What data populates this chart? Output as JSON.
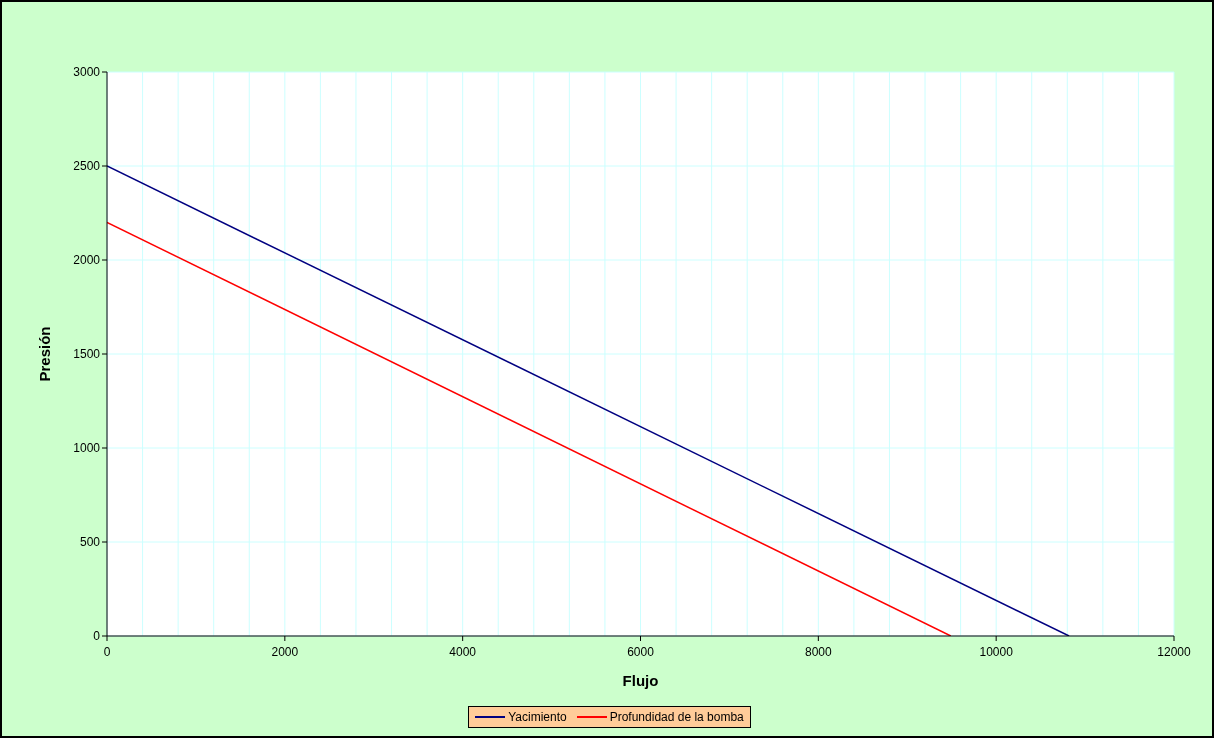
{
  "chart_data": {
    "type": "line",
    "xlabel": "Flujo",
    "ylabel": "Presión",
    "series": [
      {
        "name": "Yacimiento",
        "color": "#000080",
        "x": [
          0,
          10820
        ],
        "values": [
          2500,
          0
        ]
      },
      {
        "name": "Profundidad de la bomba",
        "color": "#ff0000",
        "x": [
          0,
          9490
        ],
        "values": [
          2200,
          0
        ]
      }
    ],
    "xlim": [
      0,
      12000
    ],
    "xticks": [
      0,
      {
        "value": 400,
        "label": null
      },
      {
        "value": 800,
        "label": null
      },
      {
        "value": 1200,
        "label": null
      },
      {
        "value": 1600,
        "label": null
      },
      2000,
      {
        "value": 2400,
        "label": null
      },
      {
        "value": 2800,
        "label": null
      },
      {
        "value": 3200,
        "label": null
      },
      {
        "value": 3600,
        "label": null
      },
      4000,
      {
        "value": 4400,
        "label": null
      },
      {
        "value": 4800,
        "label": null
      },
      {
        "value": 5200,
        "label": null
      },
      {
        "value": 5600,
        "label": null
      },
      6000,
      {
        "value": 6400,
        "label": null
      },
      {
        "value": 6800,
        "label": null
      },
      {
        "value": 7200,
        "label": null
      },
      {
        "value": 7600,
        "label": null
      },
      8000,
      {
        "value": 8400,
        "label": null
      },
      {
        "value": 8800,
        "label": null
      },
      {
        "value": 9200,
        "label": null
      },
      {
        "value": 9600,
        "label": null
      },
      10000,
      {
        "value": 10400,
        "label": null
      },
      {
        "value": 10800,
        "label": null
      },
      {
        "value": 11200,
        "label": null
      },
      {
        "value": 11600,
        "label": null
      },
      12000
    ],
    "ylim": [
      0,
      3000
    ],
    "yticks": [
      0,
      500,
      1000,
      1500,
      2000,
      2500,
      3000
    ],
    "grid": true,
    "legend": "bottom",
    "marker": "none",
    "line_style": "solid"
  }
}
